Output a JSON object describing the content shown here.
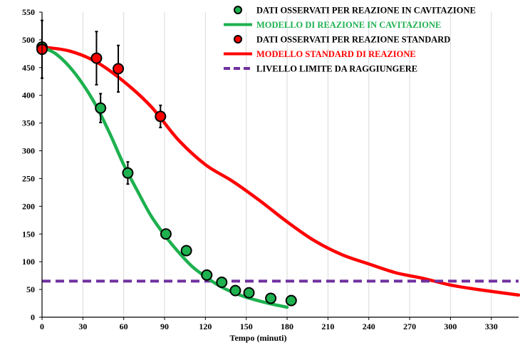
{
  "chart_data": {
    "type": "scatter",
    "xlabel": "Tempo (minuti)",
    "ylabel": "",
    "xlim": [
      0,
      350
    ],
    "ylim": [
      0,
      550
    ],
    "xticks": [
      0,
      30,
      60,
      90,
      120,
      150,
      180,
      210,
      240,
      270,
      300,
      330
    ],
    "yticks": [
      0,
      50,
      100,
      150,
      200,
      250,
      300,
      350,
      400,
      450,
      500,
      550
    ],
    "grid": "vertical",
    "legend_position": "top-right",
    "colors": {
      "cavitation": "#1db14f",
      "standard": "#ff0000",
      "limit": "#7030a0",
      "marker_edge": "#000000",
      "axis": "#000000",
      "grid": "#d9d9d9"
    },
    "series": [
      {
        "name": "DATI OSSERVATI PER REAZIONE IN CAVITAZIONE",
        "kind": "points",
        "color": "#1db14f",
        "points": [
          {
            "x": 0,
            "y": 487,
            "err": 0
          },
          {
            "x": 43,
            "y": 377,
            "err": 26
          },
          {
            "x": 63,
            "y": 260,
            "err": 20
          },
          {
            "x": 91,
            "y": 150,
            "err": 5
          },
          {
            "x": 106,
            "y": 120,
            "err": 0
          },
          {
            "x": 121,
            "y": 76,
            "err": 0
          },
          {
            "x": 132,
            "y": 63,
            "err": 0
          },
          {
            "x": 142,
            "y": 48,
            "err": 0
          },
          {
            "x": 152,
            "y": 44,
            "err": 0
          },
          {
            "x": 168,
            "y": 34,
            "err": 0
          },
          {
            "x": 183,
            "y": 30,
            "err": 0
          }
        ]
      },
      {
        "name": "MODELLO DI REAZIONE IN CAVITAZIONE",
        "kind": "line",
        "color": "#1db14f",
        "x": [
          0,
          10,
          20,
          30,
          40,
          50,
          60,
          70,
          80,
          90,
          100,
          110,
          120,
          130,
          140,
          150,
          160,
          170,
          180
        ],
        "y": [
          487,
          475,
          452,
          420,
          380,
          330,
          275,
          228,
          183,
          148,
          118,
          92,
          73,
          57,
          45,
          36,
          29,
          23,
          18
        ]
      },
      {
        "name": "DATI OSSERVATI PER REAZIONE STANDARD",
        "kind": "points",
        "color": "#ff0000",
        "points": [
          {
            "x": 0,
            "y": 483,
            "err": 52
          },
          {
            "x": 40,
            "y": 467,
            "err": 48
          },
          {
            "x": 56,
            "y": 448,
            "err": 42
          },
          {
            "x": 87,
            "y": 362,
            "err": 20
          }
        ]
      },
      {
        "name": "MODELLO STANDARD DI REAZIONE",
        "kind": "line",
        "color": "#ff0000",
        "x": [
          0,
          20,
          40,
          60,
          80,
          100,
          120,
          140,
          160,
          180,
          200,
          220,
          240,
          260,
          280,
          300,
          320,
          350
        ],
        "y": [
          487,
          480,
          460,
          425,
          380,
          320,
          275,
          245,
          210,
          172,
          138,
          113,
          96,
          80,
          70,
          58,
          50,
          40
        ]
      },
      {
        "name": "LIVELLO LIMITE DA RAGGIUNGERE",
        "kind": "hline",
        "color": "#7030a0",
        "y": 65
      }
    ]
  }
}
